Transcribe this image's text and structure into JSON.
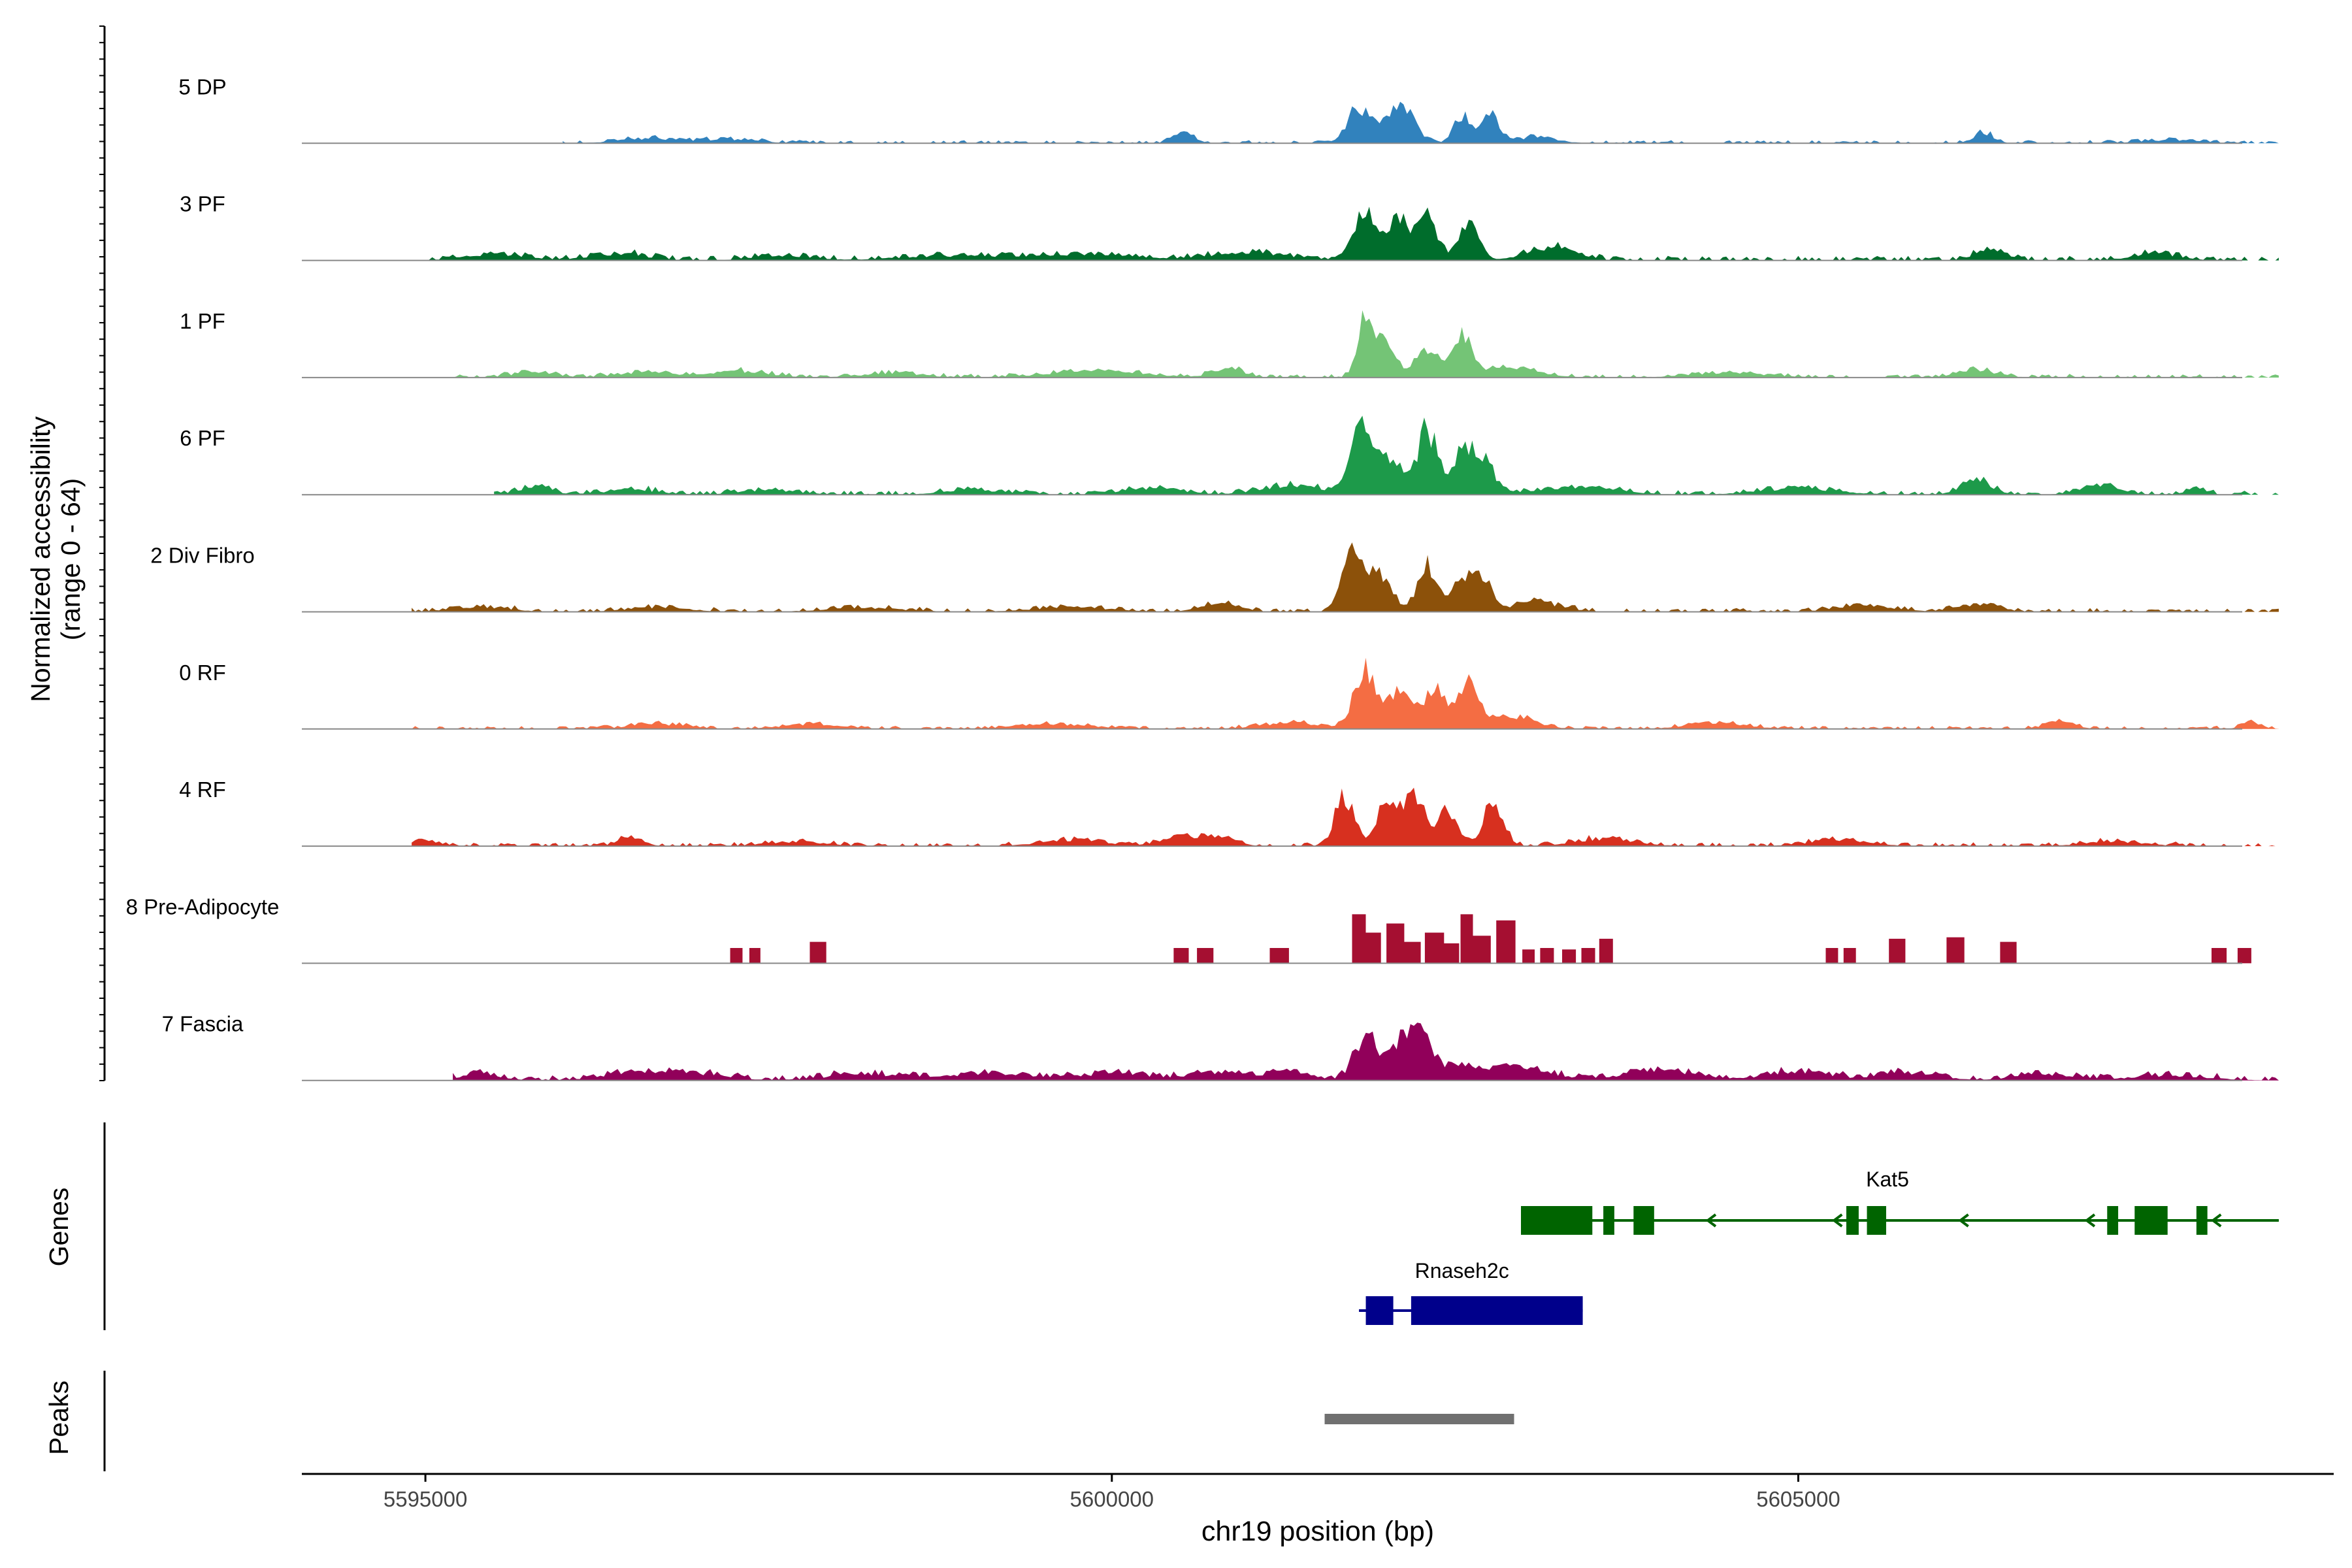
{
  "chart_data": {
    "type": "area",
    "title": "",
    "xlabel": "chr19 position (bp)",
    "ylabel": [
      "Normalized accessibility",
      "(range 0 - 64)"
    ],
    "xlim": [
      5594100,
      5608900
    ],
    "ylim": [
      0,
      64
    ],
    "xticks": [
      {
        "value": 5595000,
        "label": "5595000"
      },
      {
        "value": 5600000,
        "label": "5600000"
      },
      {
        "value": 5605000,
        "label": "5605000"
      }
    ],
    "track_labels": {
      "genes": "Genes",
      "peaks": "Peaks"
    },
    "series": [
      {
        "name": "5 DP",
        "color": "#3182BD",
        "data_start": 5596000,
        "data_end": 5608500,
        "baseline": 1.0,
        "noise": 0.8,
        "peaks": [
          [
            5596600,
            0.28,
            3
          ],
          [
            5597200,
            0.3,
            2.5
          ],
          [
            5600520,
            0.1,
            8
          ],
          [
            5601800,
            0.12,
            24
          ],
          [
            5602100,
            0.14,
            25
          ],
          [
            5602550,
            0.08,
            18
          ],
          [
            5602760,
            0.09,
            19
          ],
          [
            5603100,
            0.2,
            4
          ],
          [
            5606350,
            0.1,
            7
          ],
          [
            5607700,
            0.3,
            2
          ]
        ]
      },
      {
        "name": "3 PF",
        "color": "#006D2C",
        "data_start": 5594900,
        "data_end": 5608500,
        "baseline": 1.5,
        "noise": 1.2,
        "peaks": [
          [
            5595500,
            0.3,
            4
          ],
          [
            5596400,
            0.3,
            4
          ],
          [
            5597600,
            0.3,
            3
          ],
          [
            5598800,
            0.5,
            3
          ],
          [
            5599800,
            0.5,
            4
          ],
          [
            5601000,
            0.4,
            5
          ],
          [
            5601850,
            0.12,
            31
          ],
          [
            5602100,
            0.1,
            28
          ],
          [
            5602300,
            0.1,
            28
          ],
          [
            5602600,
            0.1,
            25
          ],
          [
            5603200,
            0.25,
            8
          ],
          [
            5606400,
            0.15,
            7
          ],
          [
            5607600,
            0.25,
            4
          ]
        ]
      },
      {
        "name": "1 PF",
        "color": "#74C476",
        "data_start": 5595200,
        "data_end": 5608500,
        "baseline": 1.0,
        "noise": 1.0,
        "peaks": [
          [
            5595800,
            0.2,
            4
          ],
          [
            5596600,
            0.3,
            3
          ],
          [
            5597300,
            0.3,
            4
          ],
          [
            5598400,
            0.3,
            3
          ],
          [
            5599900,
            0.5,
            4
          ],
          [
            5600850,
            0.15,
            6
          ],
          [
            5601850,
            0.08,
            40
          ],
          [
            5602000,
            0.1,
            22
          ],
          [
            5602300,
            0.12,
            20
          ],
          [
            5602550,
            0.1,
            25
          ],
          [
            5602900,
            0.3,
            6
          ],
          [
            5604500,
            0.4,
            3
          ],
          [
            5606300,
            0.2,
            5
          ]
        ]
      },
      {
        "name": "6 PF",
        "color": "#1D9A4A",
        "data_start": 5595500,
        "data_end": 5608500,
        "baseline": 1.2,
        "noise": 1.2,
        "peaks": [
          [
            5595800,
            0.15,
            6
          ],
          [
            5596500,
            0.3,
            3
          ],
          [
            5597500,
            0.3,
            3
          ],
          [
            5599000,
            0.3,
            3
          ],
          [
            5600300,
            0.3,
            4
          ],
          [
            5601300,
            0.3,
            6
          ],
          [
            5601800,
            0.1,
            40
          ],
          [
            5602000,
            0.15,
            26
          ],
          [
            5602300,
            0.1,
            42
          ],
          [
            5602550,
            0.1,
            24
          ],
          [
            5602700,
            0.12,
            22
          ],
          [
            5603400,
            0.4,
            5
          ],
          [
            5605000,
            0.4,
            4
          ],
          [
            5606300,
            0.15,
            10
          ],
          [
            5607200,
            0.2,
            6
          ],
          [
            5607900,
            0.1,
            5
          ]
        ]
      },
      {
        "name": "2 Div Fibro",
        "color": "#8C510A",
        "data_start": 5594900,
        "data_end": 5608500,
        "baseline": 1.2,
        "noise": 1.0,
        "peaks": [
          [
            5595400,
            0.3,
            3
          ],
          [
            5596700,
            0.3,
            3
          ],
          [
            5598200,
            0.4,
            2.5
          ],
          [
            5599700,
            0.4,
            3
          ],
          [
            5600800,
            0.2,
            5
          ],
          [
            5601750,
            0.1,
            42
          ],
          [
            5601950,
            0.12,
            24
          ],
          [
            5602300,
            0.1,
            30
          ],
          [
            5602550,
            0.1,
            22
          ],
          [
            5602700,
            0.1,
            20
          ],
          [
            5603100,
            0.25,
            6
          ],
          [
            5605500,
            0.3,
            4
          ],
          [
            5606300,
            0.2,
            5
          ]
        ]
      },
      {
        "name": "0 RF",
        "color": "#F46D43",
        "data_start": 5594900,
        "data_end": 5608500,
        "baseline": 1.0,
        "noise": 0.8,
        "peaks": [
          [
            5596700,
            0.3,
            3
          ],
          [
            5597800,
            0.3,
            3
          ],
          [
            5599600,
            0.4,
            3
          ],
          [
            5601300,
            0.3,
            4
          ],
          [
            5601850,
            0.12,
            38
          ],
          [
            5602100,
            0.1,
            26
          ],
          [
            5602350,
            0.12,
            26
          ],
          [
            5602600,
            0.1,
            28
          ],
          [
            5602900,
            0.25,
            8
          ],
          [
            5604400,
            0.3,
            4
          ],
          [
            5606900,
            0.15,
            5
          ],
          [
            5608300,
            0.1,
            4
          ]
        ]
      },
      {
        "name": "4 RF",
        "color": "#D7301F",
        "data_start": 5594900,
        "data_end": 5608500,
        "baseline": 1.2,
        "noise": 1.0,
        "peaks": [
          [
            5595000,
            0.15,
            3
          ],
          [
            5596500,
            0.12,
            6
          ],
          [
            5597700,
            0.3,
            3
          ],
          [
            5599700,
            0.3,
            4
          ],
          [
            5600500,
            0.2,
            7
          ],
          [
            5600800,
            0.15,
            6
          ],
          [
            5601700,
            0.1,
            32
          ],
          [
            5602000,
            0.1,
            30
          ],
          [
            5602200,
            0.1,
            36
          ],
          [
            5602450,
            0.1,
            24
          ],
          [
            5602780,
            0.1,
            28
          ],
          [
            5603600,
            0.3,
            5
          ],
          [
            5605300,
            0.3,
            4
          ],
          [
            5607300,
            0.3,
            3
          ]
        ]
      },
      {
        "name": "8 Pre-Adipocyte",
        "color": "#A50F31",
        "data_start": 5594900,
        "data_end": 5608500,
        "baseline": 0,
        "noise": 0,
        "blocks": [
          [
            5597220,
            5597310,
            10
          ],
          [
            5597360,
            5597440,
            10
          ],
          [
            5597800,
            5597920,
            14
          ],
          [
            5600450,
            5600560,
            10
          ],
          [
            5600620,
            5600740,
            10
          ],
          [
            5601150,
            5601290,
            10
          ],
          [
            5601750,
            5601850,
            32
          ],
          [
            5601850,
            5601960,
            20
          ],
          [
            5602000,
            5602130,
            26
          ],
          [
            5602130,
            5602250,
            14
          ],
          [
            5602280,
            5602420,
            20
          ],
          [
            5602420,
            5602530,
            13
          ],
          [
            5602540,
            5602630,
            32
          ],
          [
            5602630,
            5602760,
            18
          ],
          [
            5602800,
            5602940,
            28
          ],
          [
            5602990,
            5603080,
            9
          ],
          [
            5603120,
            5603220,
            10
          ],
          [
            5603280,
            5603380,
            9
          ],
          [
            5603420,
            5603520,
            10
          ],
          [
            5603550,
            5603650,
            16
          ],
          [
            5605200,
            5605290,
            10
          ],
          [
            5605330,
            5605420,
            10
          ],
          [
            5605660,
            5605780,
            16
          ],
          [
            5606080,
            5606210,
            17
          ],
          [
            5606470,
            5606590,
            14
          ],
          [
            5608010,
            5608120,
            10
          ],
          [
            5608200,
            5608300,
            10
          ]
        ]
      },
      {
        "name": "7 Fascia",
        "color": "#91005A",
        "data_start": 5595200,
        "data_end": 5608500,
        "baseline": 1.5,
        "noise": 1.5,
        "peaks": [
          [
            5595400,
            0.2,
            4
          ],
          [
            5596500,
            0.3,
            5
          ],
          [
            5597000,
            0.3,
            4
          ],
          [
            5598200,
            0.4,
            4
          ],
          [
            5599100,
            0.4,
            4
          ],
          [
            5600000,
            0.4,
            4
          ],
          [
            5600800,
            0.3,
            5
          ],
          [
            5601300,
            0.2,
            5
          ],
          [
            5601850,
            0.12,
            28
          ],
          [
            5602100,
            0.12,
            22
          ],
          [
            5602250,
            0.1,
            24
          ],
          [
            5602500,
            0.3,
            10
          ],
          [
            5603000,
            0.3,
            7
          ],
          [
            5604000,
            0.4,
            6
          ],
          [
            5605000,
            0.3,
            6
          ],
          [
            5605800,
            0.3,
            5
          ],
          [
            5606800,
            0.3,
            4
          ],
          [
            5607700,
            0.4,
            3
          ]
        ]
      }
    ],
    "genes": [
      {
        "name": "Kat5",
        "color": "#006400",
        "strand": "-",
        "start": 5602980,
        "end": 5608500,
        "exons": [
          [
            5602980,
            5603500
          ],
          [
            5603580,
            5603660
          ],
          [
            5603800,
            5603950
          ],
          [
            5605350,
            5605440
          ],
          [
            5605500,
            5605640
          ],
          [
            5607250,
            5607330
          ],
          [
            5607450,
            5607690
          ],
          [
            5607900,
            5607980
          ]
        ]
      },
      {
        "name": "Rnaseh2c",
        "color": "#00008B",
        "strand": "-",
        "start": 5601800,
        "end": 5603430,
        "exons": [
          [
            5601850,
            5602050
          ],
          [
            5602180,
            5603430
          ]
        ]
      }
    ],
    "peaks_track": [
      {
        "start": 5601550,
        "end": 5602930,
        "color": "#707070"
      }
    ]
  }
}
